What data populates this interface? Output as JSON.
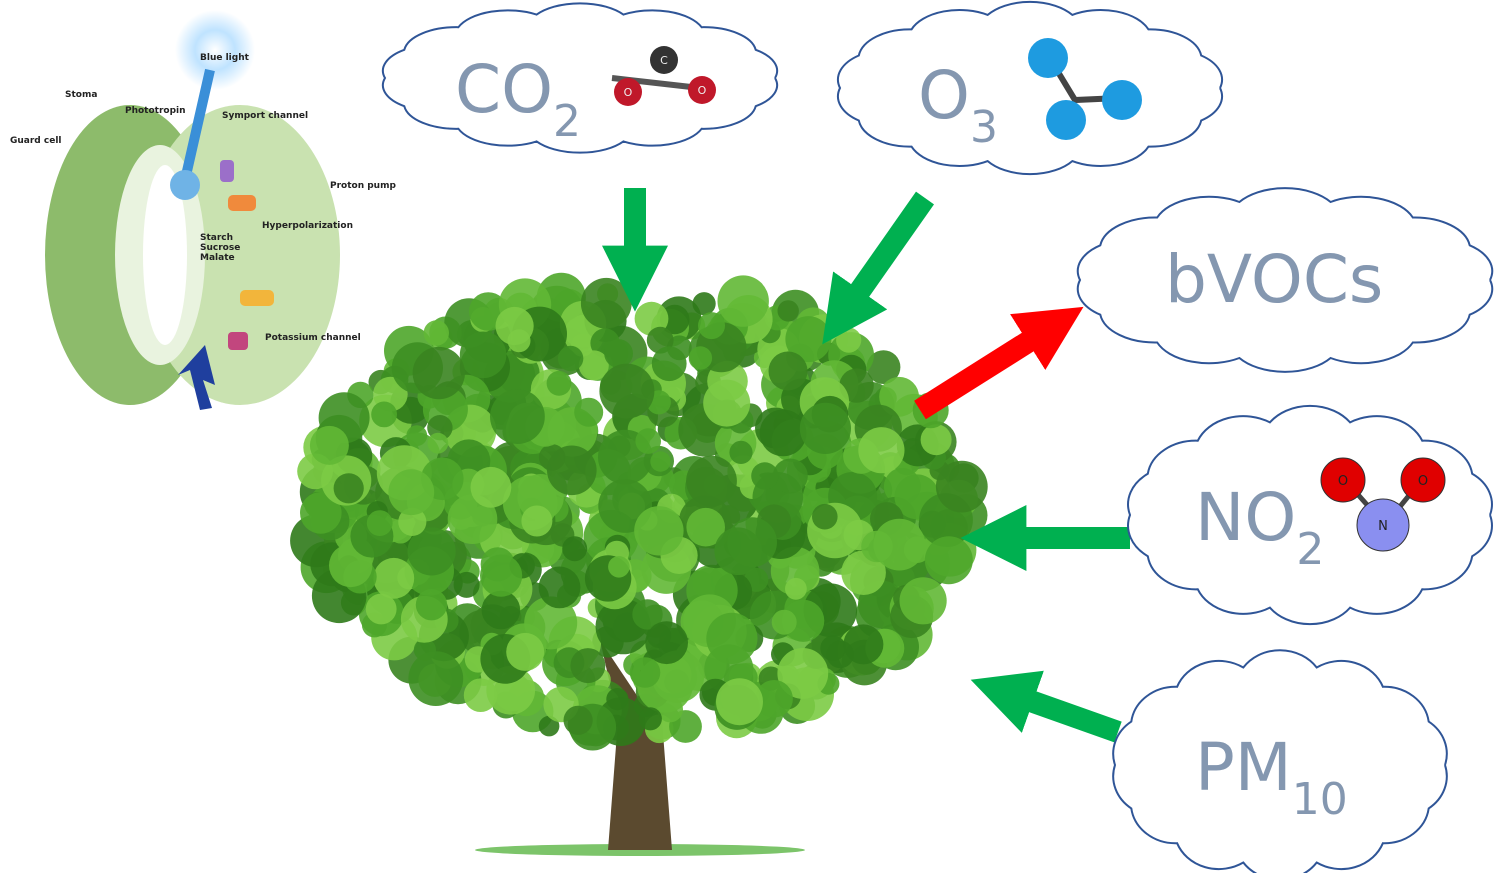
{
  "clouds": [
    {
      "main": "CO",
      "sub": "2"
    },
    {
      "main": "O",
      "sub": "3"
    },
    {
      "main": "bVOCs"
    },
    {
      "main": "NO",
      "sub": "2"
    },
    {
      "main": "PM",
      "sub": "10"
    }
  ],
  "molecules": {
    "co2": [
      "O",
      "C",
      "O"
    ],
    "no2": [
      "O",
      "N",
      "O"
    ]
  },
  "stomata": {
    "labels": [
      "Blue light",
      "Stoma",
      "Phototropin",
      "Symport channel",
      "Guard cell",
      "Proton pump",
      "Hyperpolarization",
      "Starch",
      "Sucrose",
      "Malate",
      "Potassium channel"
    ]
  }
}
